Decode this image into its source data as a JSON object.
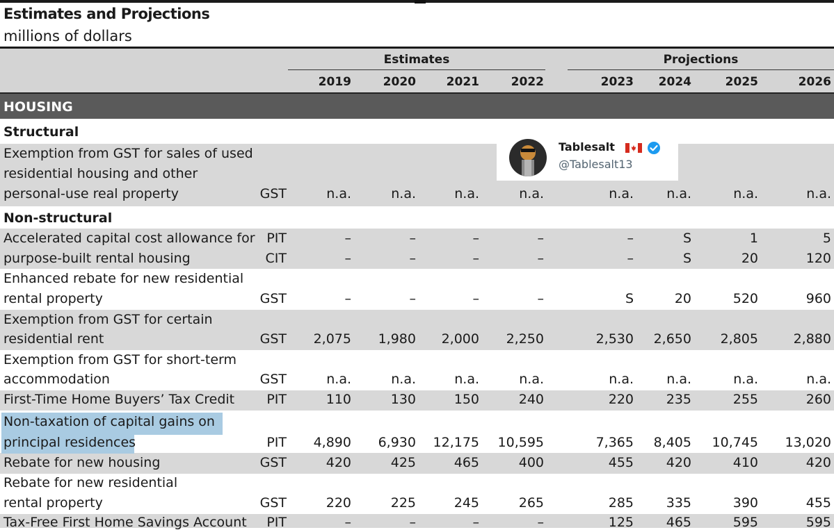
{
  "title": "Estimates and Projections",
  "subtitle": "millions of dollars",
  "groups": {
    "estimates": "Estimates",
    "projections": "Projections"
  },
  "years": [
    "2019",
    "2020",
    "2021",
    "2022",
    "2023",
    "2024",
    "2025",
    "2026"
  ],
  "section": "HOUSING",
  "subsections": {
    "structural": "Structural",
    "nonstructural": "Non-structural"
  },
  "rows": [
    {
      "lines": [
        "Exemption from GST for sales of used",
        "residential housing and other",
        "personal-use real property"
      ],
      "tax": "GST",
      "values": [
        "n.a.",
        "n.a.",
        "n.a.",
        "n.a.",
        "n.a.",
        "n.a.",
        "n.a.",
        "n.a."
      ]
    },
    {
      "lines": [
        "Accelerated capital cost allowance for"
      ],
      "tax": "PIT",
      "values": [
        "–",
        "–",
        "–",
        "–",
        "–",
        "S",
        "1",
        "5"
      ]
    },
    {
      "lines": [
        "purpose-built rental housing"
      ],
      "tax": "CIT",
      "values": [
        "–",
        "–",
        "–",
        "–",
        "–",
        "S",
        "20",
        "120"
      ]
    },
    {
      "lines": [
        "Enhanced rebate for new residential",
        "rental property"
      ],
      "tax": "GST",
      "values": [
        "–",
        "–",
        "–",
        "–",
        "S",
        "20",
        "520",
        "960"
      ]
    },
    {
      "lines": [
        "Exemption from GST for certain",
        "residential rent"
      ],
      "tax": "GST",
      "values": [
        "2,075",
        "1,980",
        "2,000",
        "2,250",
        "2,530",
        "2,650",
        "2,805",
        "2,880"
      ]
    },
    {
      "lines": [
        "Exemption from GST for short-term",
        "accommodation"
      ],
      "tax": "GST",
      "values": [
        "n.a.",
        "n.a.",
        "n.a.",
        "n.a.",
        "n.a.",
        "n.a.",
        "n.a.",
        "n.a."
      ]
    },
    {
      "lines": [
        "First-Time Home Buyers’ Tax Credit"
      ],
      "tax": "PIT",
      "values": [
        "110",
        "130",
        "150",
        "240",
        "220",
        "235",
        "255",
        "260"
      ]
    },
    {
      "lines": [
        "Non-taxation of capital gains on",
        "principal residences"
      ],
      "tax": "PIT",
      "values": [
        "4,890",
        "6,930",
        "12,175",
        "10,595",
        "7,365",
        "8,405",
        "10,745",
        "13,020"
      ]
    },
    {
      "lines": [
        "Rebate for new housing"
      ],
      "tax": "GST",
      "values": [
        "420",
        "425",
        "465",
        "400",
        "455",
        "420",
        "410",
        "420"
      ]
    },
    {
      "lines": [
        "Rebate for new residential",
        "rental property"
      ],
      "tax": "GST",
      "values": [
        "220",
        "225",
        "245",
        "265",
        "285",
        "335",
        "390",
        "455"
      ]
    },
    {
      "lines": [
        "Tax-Free First Home Savings Account"
      ],
      "tax": "PIT",
      "values": [
        "–",
        "–",
        "–",
        "–",
        "125",
        "465",
        "595",
        "595"
      ]
    }
  ],
  "overlay": {
    "name": "Tablesalt",
    "handle": "@Tablesalt13"
  },
  "colors": {
    "band": "#d8d8d8",
    "section": "#5a5a5a",
    "header": "#d4d4d4",
    "highlight": "#a9cbe2",
    "verified": "#1d9bf0"
  }
}
